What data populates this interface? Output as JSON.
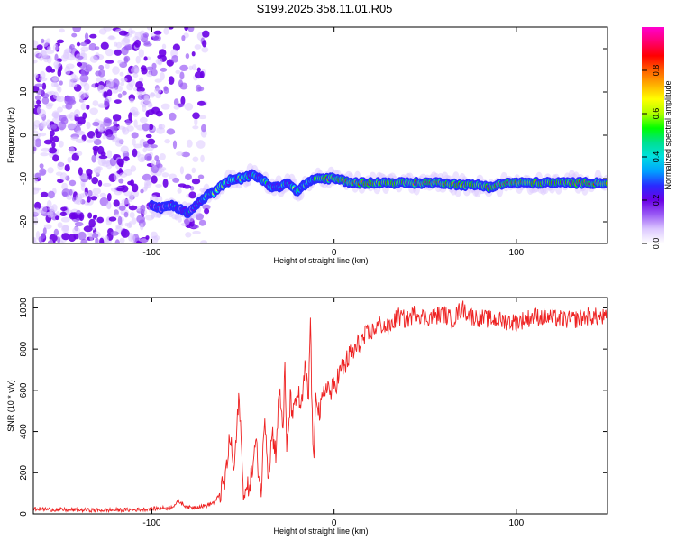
{
  "title": "S199.2025.358.11.01.R05",
  "colors": {
    "snr_line": "#ee2222",
    "background": "#ffffff",
    "axis": "#000000"
  },
  "chart_data": [
    {
      "type": "heatmap",
      "name": "spectrogram",
      "xlabel": "Height of straight line (km)",
      "ylabel": "Frequency (Hz)",
      "xlim": [
        -165,
        150
      ],
      "ylim": [
        -25,
        25
      ],
      "xticks": [
        -100,
        0,
        100
      ],
      "xtick_labels": [
        "-100",
        "0",
        "100"
      ],
      "yticks": [
        -20,
        -10,
        0,
        10,
        20
      ],
      "ytick_labels": [
        "-20",
        "-10",
        "0",
        "10",
        "20"
      ],
      "noise_region_km": [
        -165,
        -70
      ],
      "ridge": {
        "description": "dominant frequency track vs height",
        "x": [
          -100,
          -95,
          -90,
          -85,
          -80,
          -75,
          -70,
          -65,
          -60,
          -55,
          -50,
          -45,
          -40,
          -35,
          -30,
          -25,
          -20,
          -15,
          -10,
          -5,
          0,
          10,
          20,
          40,
          60,
          70,
          80,
          85,
          90,
          95,
          100,
          110,
          120,
          130,
          140,
          150
        ],
        "y": [
          -16,
          -17,
          -16,
          -17,
          -18,
          -16,
          -14,
          -13,
          -11,
          -10,
          -10,
          -9,
          -10,
          -12,
          -12,
          -11,
          -13,
          -11,
          -10,
          -10,
          -10,
          -11,
          -11,
          -11,
          -11,
          -11.5,
          -11.5,
          -12,
          -11.5,
          -11,
          -11,
          -11,
          -11,
          -11,
          -11,
          -11
        ]
      },
      "colorbar": {
        "label": "Normalized spectral amplitude",
        "range": [
          0,
          1
        ],
        "ticks": [
          0.0,
          0.2,
          0.4,
          0.6,
          0.8
        ],
        "tick_labels": [
          "0.0",
          "0.2",
          "0.4",
          "0.6",
          "0.8"
        ],
        "colors": [
          "#ffffff",
          "#dcc8ff",
          "#9b5cf5",
          "#6a00e6",
          "#2a2aff",
          "#00a0ff",
          "#00e0e0",
          "#00e090",
          "#00ff00",
          "#b0ff00",
          "#ffff00",
          "#ffb000",
          "#ff6000",
          "#ff0000",
          "#ff0070",
          "#ff00d0"
        ]
      }
    },
    {
      "type": "line",
      "name": "snr",
      "xlabel": "Height of straight line (km)",
      "ylabel": "SNR (10 * v/v)",
      "xlim": [
        -165,
        150
      ],
      "ylim": [
        0,
        1050
      ],
      "xticks": [
        -100,
        0,
        100
      ],
      "xtick_labels": [
        "-100",
        "0",
        "100"
      ],
      "yticks": [
        0,
        200,
        400,
        600,
        800,
        1000
      ],
      "ytick_labels": [
        "0",
        "200",
        "400",
        "600",
        "800",
        "1000"
      ],
      "series": [
        {
          "name": "SNR",
          "x": [
            -165,
            -150,
            -130,
            -110,
            -90,
            -85,
            -80,
            -70,
            -65,
            -60,
            -57,
            -55,
            -52,
            -50,
            -48,
            -45,
            -43,
            -40,
            -38,
            -36,
            -34,
            -32,
            -30,
            -28,
            -27,
            -26,
            -24,
            -22,
            -20,
            -18,
            -16,
            -14,
            -13,
            -12,
            -11,
            -10,
            -8,
            -6,
            -4,
            -2,
            0,
            2,
            4,
            6,
            8,
            10,
            12,
            15,
            18,
            20,
            25,
            30,
            35,
            40,
            45,
            50,
            55,
            60,
            65,
            70,
            75,
            80,
            90,
            100,
            110,
            120,
            130,
            140,
            150
          ],
          "y": [
            25,
            20,
            18,
            20,
            30,
            60,
            30,
            40,
            60,
            150,
            380,
            200,
            580,
            130,
            100,
            200,
            350,
            90,
            500,
            180,
            400,
            300,
            600,
            420,
            700,
            300,
            550,
            480,
            600,
            500,
            700,
            560,
            960,
            460,
            220,
            620,
            480,
            560,
            640,
            580,
            620,
            660,
            700,
            720,
            760,
            780,
            800,
            840,
            860,
            880,
            920,
            900,
            960,
            940,
            980,
            950,
            960,
            970,
            940,
            1000,
            960,
            950,
            940,
            930,
            960,
            950,
            940,
            960,
            950
          ]
        }
      ]
    }
  ]
}
